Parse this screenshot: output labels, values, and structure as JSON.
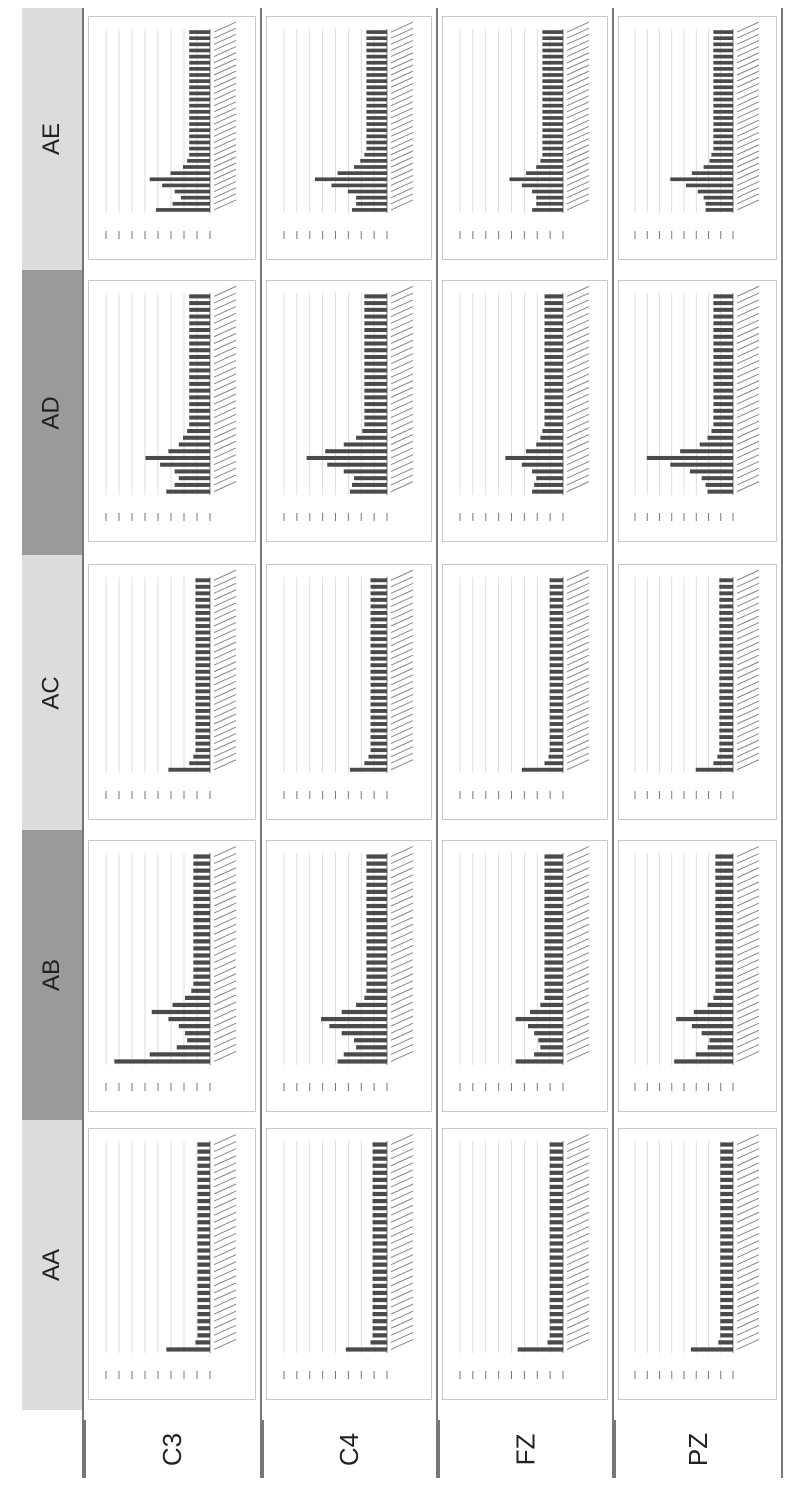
{
  "table": {
    "columns": [
      "AA",
      "AB",
      "AC",
      "AD",
      "AE"
    ],
    "rows": [
      "C3",
      "C4",
      "FZ",
      "PZ"
    ],
    "column_header_colors": [
      "#dcdcdc",
      "#9a9a9a",
      "#dcdcdc",
      "#9a9a9a",
      "#dcdcdc"
    ]
  },
  "chart_data": [
    {
      "type": "bar",
      "row": "C3",
      "column": "AA",
      "series": [
        {
          "values": [
            0.42,
            0.14,
            0.12,
            0.12,
            0.12,
            0.12,
            0.12,
            0.12,
            0.12,
            0.12,
            0.12,
            0.12,
            0.12,
            0.12,
            0.12,
            0.12,
            0.12,
            0.12,
            0.12,
            0.12,
            0.12,
            0.12,
            0.12,
            0.12,
            0.12,
            0.12,
            0.12,
            0.12,
            0.12,
            0.12
          ]
        }
      ]
    },
    {
      "type": "bar",
      "row": "C4",
      "column": "AA",
      "series": [
        {
          "values": [
            0.4,
            0.16,
            0.14,
            0.14,
            0.14,
            0.14,
            0.14,
            0.14,
            0.14,
            0.14,
            0.14,
            0.14,
            0.14,
            0.14,
            0.14,
            0.14,
            0.14,
            0.14,
            0.14,
            0.14,
            0.14,
            0.14,
            0.14,
            0.14,
            0.14,
            0.14,
            0.14,
            0.14,
            0.14,
            0.14
          ]
        }
      ]
    },
    {
      "type": "bar",
      "row": "FZ",
      "column": "AA",
      "series": [
        {
          "values": [
            0.44,
            0.15,
            0.13,
            0.13,
            0.13,
            0.13,
            0.13,
            0.13,
            0.13,
            0.13,
            0.13,
            0.13,
            0.13,
            0.13,
            0.13,
            0.13,
            0.13,
            0.13,
            0.13,
            0.13,
            0.13,
            0.13,
            0.13,
            0.13,
            0.13,
            0.13,
            0.13,
            0.13,
            0.13,
            0.13
          ]
        }
      ]
    },
    {
      "type": "bar",
      "row": "PZ",
      "column": "AA",
      "series": [
        {
          "values": [
            0.43,
            0.15,
            0.13,
            0.13,
            0.13,
            0.13,
            0.13,
            0.13,
            0.13,
            0.13,
            0.13,
            0.13,
            0.13,
            0.13,
            0.13,
            0.13,
            0.13,
            0.13,
            0.13,
            0.13,
            0.13,
            0.13,
            0.13,
            0.13,
            0.13,
            0.13,
            0.13,
            0.13,
            0.13,
            0.13
          ]
        }
      ]
    },
    {
      "type": "bar",
      "row": "C3",
      "column": "AB",
      "series": [
        {
          "values": [
            0.92,
            0.58,
            0.32,
            0.22,
            0.24,
            0.3,
            0.4,
            0.56,
            0.36,
            0.24,
            0.18,
            0.16,
            0.16,
            0.16,
            0.16,
            0.16,
            0.16,
            0.16,
            0.16,
            0.16,
            0.16,
            0.16,
            0.16,
            0.16,
            0.16,
            0.16,
            0.16,
            0.16,
            0.16,
            0.16
          ]
        }
      ]
    },
    {
      "type": "bar",
      "row": "C4",
      "column": "AB",
      "series": [
        {
          "values": [
            0.48,
            0.42,
            0.3,
            0.32,
            0.44,
            0.56,
            0.64,
            0.44,
            0.3,
            0.22,
            0.2,
            0.2,
            0.2,
            0.2,
            0.2,
            0.2,
            0.2,
            0.2,
            0.2,
            0.2,
            0.2,
            0.2,
            0.2,
            0.2,
            0.2,
            0.2,
            0.2,
            0.2,
            0.2,
            0.2
          ]
        }
      ]
    },
    {
      "type": "bar",
      "row": "FZ",
      "column": "AB",
      "series": [
        {
          "values": [
            0.46,
            0.28,
            0.22,
            0.24,
            0.28,
            0.34,
            0.46,
            0.32,
            0.22,
            0.18,
            0.18,
            0.18,
            0.18,
            0.18,
            0.18,
            0.18,
            0.18,
            0.18,
            0.18,
            0.18,
            0.18,
            0.18,
            0.18,
            0.18,
            0.18,
            0.18,
            0.18,
            0.18,
            0.18,
            0.18
          ]
        }
      ]
    },
    {
      "type": "bar",
      "row": "PZ",
      "column": "AB",
      "series": [
        {
          "values": [
            0.6,
            0.38,
            0.26,
            0.24,
            0.32,
            0.42,
            0.58,
            0.4,
            0.26,
            0.2,
            0.18,
            0.18,
            0.18,
            0.18,
            0.18,
            0.18,
            0.18,
            0.18,
            0.18,
            0.18,
            0.18,
            0.18,
            0.18,
            0.18,
            0.18,
            0.18,
            0.18,
            0.18,
            0.18,
            0.18
          ]
        }
      ]
    },
    {
      "type": "bar",
      "row": "C3",
      "column": "AC",
      "series": [
        {
          "values": [
            0.4,
            0.2,
            0.16,
            0.14,
            0.14,
            0.14,
            0.14,
            0.14,
            0.14,
            0.14,
            0.14,
            0.14,
            0.14,
            0.14,
            0.14,
            0.14,
            0.14,
            0.14,
            0.14,
            0.14,
            0.14,
            0.14,
            0.14,
            0.14,
            0.14,
            0.14,
            0.14,
            0.14,
            0.14,
            0.14
          ]
        }
      ]
    },
    {
      "type": "bar",
      "row": "C4",
      "column": "AC",
      "series": [
        {
          "values": [
            0.36,
            0.22,
            0.18,
            0.16,
            0.16,
            0.16,
            0.16,
            0.16,
            0.16,
            0.16,
            0.16,
            0.16,
            0.16,
            0.16,
            0.16,
            0.16,
            0.16,
            0.16,
            0.16,
            0.16,
            0.16,
            0.16,
            0.16,
            0.16,
            0.16,
            0.16,
            0.16,
            0.16,
            0.16,
            0.16
          ]
        }
      ]
    },
    {
      "type": "bar",
      "row": "FZ",
      "column": "AC",
      "series": [
        {
          "values": [
            0.4,
            0.18,
            0.14,
            0.13,
            0.13,
            0.13,
            0.13,
            0.13,
            0.13,
            0.13,
            0.13,
            0.13,
            0.13,
            0.13,
            0.13,
            0.13,
            0.13,
            0.13,
            0.13,
            0.13,
            0.13,
            0.13,
            0.13,
            0.13,
            0.13,
            0.13,
            0.13,
            0.13,
            0.13,
            0.13
          ]
        }
      ]
    },
    {
      "type": "bar",
      "row": "PZ",
      "column": "AC",
      "series": [
        {
          "values": [
            0.38,
            0.2,
            0.16,
            0.14,
            0.14,
            0.14,
            0.14,
            0.14,
            0.14,
            0.14,
            0.14,
            0.14,
            0.14,
            0.14,
            0.14,
            0.14,
            0.14,
            0.14,
            0.14,
            0.14,
            0.14,
            0.14,
            0.14,
            0.14,
            0.14,
            0.14,
            0.14,
            0.14,
            0.14,
            0.14
          ]
        }
      ]
    },
    {
      "type": "bar",
      "row": "C3",
      "column": "AD",
      "series": [
        {
          "values": [
            0.42,
            0.34,
            0.3,
            0.34,
            0.48,
            0.62,
            0.4,
            0.3,
            0.26,
            0.22,
            0.2,
            0.2,
            0.2,
            0.2,
            0.2,
            0.2,
            0.2,
            0.2,
            0.2,
            0.2,
            0.2,
            0.2,
            0.2,
            0.2,
            0.2,
            0.2,
            0.2,
            0.2,
            0.2,
            0.2
          ]
        }
      ]
    },
    {
      "type": "bar",
      "row": "C4",
      "column": "AD",
      "series": [
        {
          "values": [
            0.36,
            0.34,
            0.32,
            0.42,
            0.58,
            0.78,
            0.6,
            0.42,
            0.3,
            0.24,
            0.22,
            0.22,
            0.22,
            0.22,
            0.22,
            0.22,
            0.22,
            0.22,
            0.22,
            0.22,
            0.22,
            0.22,
            0.22,
            0.22,
            0.22,
            0.22,
            0.22,
            0.22,
            0.22,
            0.22
          ]
        }
      ]
    },
    {
      "type": "bar",
      "row": "FZ",
      "column": "AD",
      "series": [
        {
          "values": [
            0.3,
            0.28,
            0.26,
            0.3,
            0.4,
            0.56,
            0.36,
            0.26,
            0.22,
            0.2,
            0.18,
            0.18,
            0.18,
            0.18,
            0.18,
            0.18,
            0.18,
            0.18,
            0.18,
            0.18,
            0.18,
            0.18,
            0.18,
            0.18,
            0.18,
            0.18,
            0.18,
            0.18,
            0.18,
            0.18
          ]
        }
      ]
    },
    {
      "type": "bar",
      "row": "PZ",
      "column": "AD",
      "series": [
        {
          "values": [
            0.26,
            0.28,
            0.32,
            0.44,
            0.64,
            0.88,
            0.54,
            0.34,
            0.26,
            0.22,
            0.2,
            0.2,
            0.2,
            0.2,
            0.2,
            0.2,
            0.2,
            0.2,
            0.2,
            0.2,
            0.2,
            0.2,
            0.2,
            0.2,
            0.2,
            0.2,
            0.2,
            0.2,
            0.2,
            0.2
          ]
        }
      ]
    },
    {
      "type": "bar",
      "row": "C3",
      "column": "AE",
      "series": [
        {
          "values": [
            0.52,
            0.36,
            0.28,
            0.34,
            0.46,
            0.58,
            0.38,
            0.26,
            0.22,
            0.2,
            0.2,
            0.2,
            0.2,
            0.2,
            0.2,
            0.2,
            0.2,
            0.2,
            0.2,
            0.2,
            0.2,
            0.2,
            0.2,
            0.2,
            0.2,
            0.2,
            0.2,
            0.2,
            0.2,
            0.2
          ]
        }
      ]
    },
    {
      "type": "bar",
      "row": "C4",
      "column": "AE",
      "series": [
        {
          "values": [
            0.34,
            0.3,
            0.3,
            0.38,
            0.54,
            0.7,
            0.48,
            0.32,
            0.26,
            0.22,
            0.2,
            0.2,
            0.2,
            0.2,
            0.2,
            0.2,
            0.2,
            0.2,
            0.2,
            0.2,
            0.2,
            0.2,
            0.2,
            0.2,
            0.2,
            0.2,
            0.2,
            0.2,
            0.2,
            0.2
          ]
        }
      ]
    },
    {
      "type": "bar",
      "row": "FZ",
      "column": "AE",
      "series": [
        {
          "values": [
            0.3,
            0.26,
            0.26,
            0.3,
            0.4,
            0.52,
            0.36,
            0.26,
            0.22,
            0.2,
            0.2,
            0.2,
            0.2,
            0.2,
            0.2,
            0.2,
            0.2,
            0.2,
            0.2,
            0.2,
            0.2,
            0.2,
            0.2,
            0.2,
            0.2,
            0.2,
            0.2,
            0.2,
            0.2,
            0.2
          ]
        }
      ]
    },
    {
      "type": "bar",
      "row": "PZ",
      "column": "AE",
      "series": [
        {
          "values": [
            0.28,
            0.28,
            0.3,
            0.36,
            0.48,
            0.64,
            0.42,
            0.3,
            0.24,
            0.22,
            0.2,
            0.2,
            0.2,
            0.2,
            0.2,
            0.2,
            0.2,
            0.2,
            0.2,
            0.2,
            0.2,
            0.2,
            0.2,
            0.2,
            0.2,
            0.2,
            0.2,
            0.2,
            0.2,
            0.2
          ]
        }
      ]
    }
  ]
}
